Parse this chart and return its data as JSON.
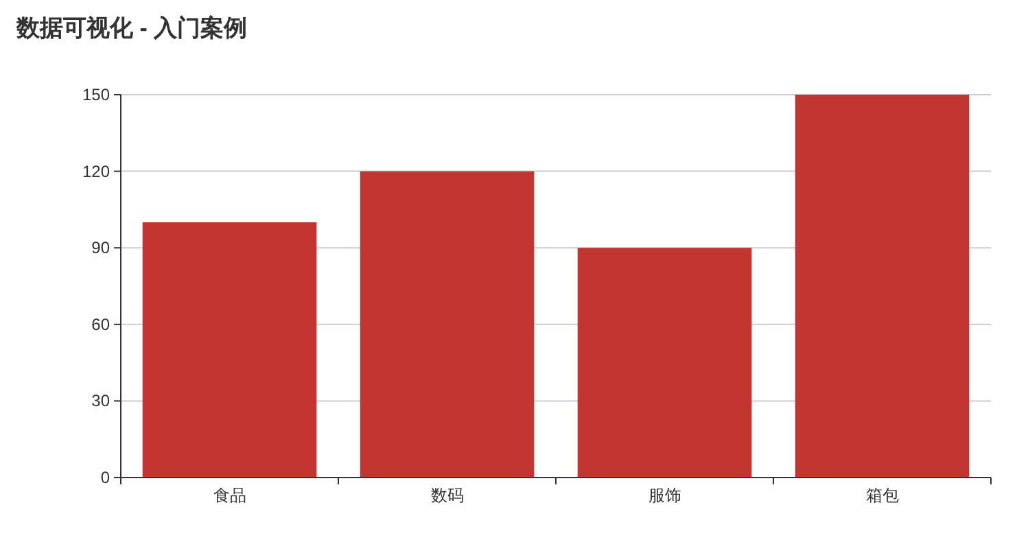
{
  "chart_data": {
    "type": "bar",
    "title": "数据可视化 - 入门案例",
    "categories": [
      "食品",
      "数码",
      "服饰",
      "箱包"
    ],
    "values": [
      100,
      120,
      90,
      150
    ],
    "color": "#c23531",
    "ylim": [
      0,
      150
    ],
    "yticks": [
      0,
      30,
      60,
      90,
      120,
      150
    ],
    "grid": "y"
  }
}
